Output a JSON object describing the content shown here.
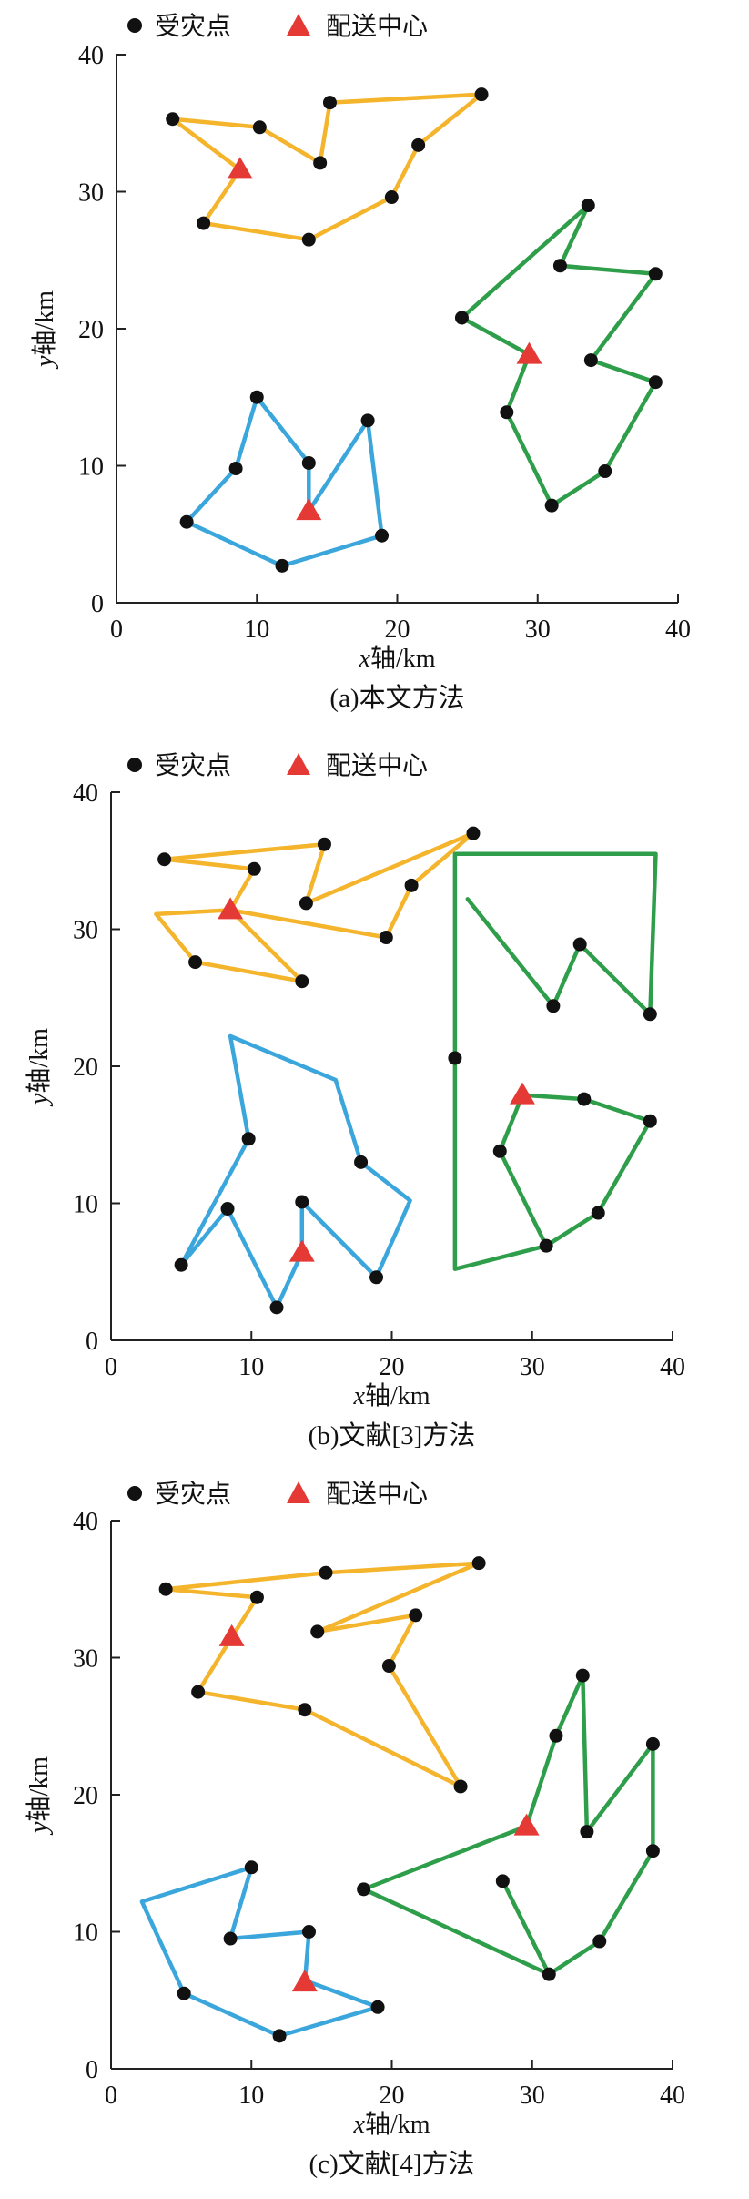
{
  "colors": {
    "route_orange": "#f4b42b",
    "route_green": "#2e9e4a",
    "route_blue": "#3aa6dc",
    "point": "#111111",
    "center": "#e53935"
  },
  "legend": {
    "affected_point_label": "受灾点",
    "center_label": "配送中心",
    "affected_point_icon": "black-dot",
    "center_icon": "red-triangle"
  },
  "axes": {
    "xlabel_italic": "x",
    "xlabel_rest": "轴/km",
    "ylabel_italic": "y",
    "ylabel_rest": "轴/km",
    "xticks": [
      "0",
      "10",
      "20",
      "30",
      "40"
    ],
    "yticks": [
      "0",
      "10",
      "20",
      "30",
      "40"
    ]
  },
  "chart_data": [
    {
      "type": "line",
      "caption": "(a)本文方法",
      "xlabel": "x轴/km",
      "ylabel": "y轴/km",
      "xlim": [
        0,
        40
      ],
      "ylim": [
        0,
        40
      ],
      "grid": false,
      "legend_placement": "top-left",
      "series": [
        {
          "color": "orange",
          "points": [
            [
              8.8,
              31.6
            ],
            [
              4,
              35.3
            ],
            [
              10.2,
              34.7
            ],
            [
              14.5,
              32.1
            ],
            [
              15.2,
              36.5
            ],
            [
              26,
              37.1
            ],
            [
              21.5,
              33.4
            ],
            [
              19.6,
              29.6
            ],
            [
              13.7,
              26.5
            ],
            [
              6.2,
              27.7
            ],
            [
              8.8,
              31.6
            ]
          ]
        },
        {
          "color": "green",
          "points": [
            [
              29.4,
              18.1
            ],
            [
              27.8,
              13.9
            ],
            [
              31,
              7.1
            ],
            [
              34.8,
              9.6
            ],
            [
              38.4,
              16.1
            ],
            [
              33.8,
              17.7
            ],
            [
              38.4,
              24
            ],
            [
              31.6,
              24.6
            ],
            [
              33.6,
              29
            ],
            [
              24.6,
              20.8
            ],
            [
              29.4,
              18.1
            ]
          ]
        },
        {
          "color": "blue",
          "points": [
            [
              13.7,
              6.7
            ],
            [
              13.7,
              10.2
            ],
            [
              10,
              15
            ],
            [
              8.5,
              9.8
            ],
            [
              5,
              5.9
            ],
            [
              11.8,
              2.7
            ],
            [
              18.9,
              4.9
            ],
            [
              17.9,
              13.3
            ],
            [
              13.7,
              6.7
            ]
          ]
        }
      ],
      "affected_points": [
        [
          4,
          35.3
        ],
        [
          10.2,
          34.7
        ],
        [
          14.5,
          32.1
        ],
        [
          15.2,
          36.5
        ],
        [
          26,
          37.1
        ],
        [
          21.5,
          33.4
        ],
        [
          19.6,
          29.6
        ],
        [
          13.7,
          26.5
        ],
        [
          6.2,
          27.7
        ],
        [
          24.6,
          20.8
        ],
        [
          33.6,
          29
        ],
        [
          31.6,
          24.6
        ],
        [
          38.4,
          24
        ],
        [
          33.8,
          17.7
        ],
        [
          38.4,
          16.1
        ],
        [
          34.8,
          9.6
        ],
        [
          31,
          7.1
        ],
        [
          27.8,
          13.9
        ],
        [
          10,
          15
        ],
        [
          8.5,
          9.8
        ],
        [
          5,
          5.9
        ],
        [
          11.8,
          2.7
        ],
        [
          18.9,
          4.9
        ],
        [
          17.9,
          13.3
        ],
        [
          13.7,
          10.2
        ]
      ],
      "centers": [
        [
          8.8,
          31.6
        ],
        [
          29.4,
          18.1
        ],
        [
          13.7,
          6.7
        ]
      ]
    },
    {
      "type": "line",
      "caption": "(b)文献[3]方法",
      "xlabel": "x轴/km",
      "ylabel": "y轴/km",
      "xlim": [
        0,
        40
      ],
      "ylim": [
        0,
        40
      ],
      "grid": false,
      "legend_placement": "top-left",
      "series": [
        {
          "color": "orange",
          "points": [
            [
              8.5,
              31.4
            ],
            [
              3.2,
              31.1
            ],
            [
              6,
              27.6
            ],
            [
              13.6,
              26.2
            ],
            [
              8.5,
              31.4
            ],
            [
              19.6,
              29.4
            ],
            [
              21.4,
              33.2
            ],
            [
              25.8,
              37
            ],
            [
              13.9,
              31.9
            ],
            [
              15.2,
              36.2
            ],
            [
              3.8,
              35.1
            ],
            [
              10.2,
              34.4
            ],
            [
              8.5,
              31.4
            ]
          ]
        },
        {
          "color": "green",
          "points": [
            [
              29.3,
              17.9
            ],
            [
              33.7,
              17.6
            ],
            [
              38.4,
              16
            ],
            [
              34.7,
              9.3
            ],
            [
              31,
              6.9
            ],
            [
              27.7,
              13.8
            ],
            [
              29.3,
              17.9
            ]
          ]
        },
        {
          "color": "green",
          "points": [
            [
              25.4,
              32.2
            ],
            [
              31.5,
              24.4
            ],
            [
              33.4,
              28.9
            ],
            [
              38.4,
              23.8
            ],
            [
              38.8,
              35.5
            ],
            [
              24.5,
              35.5
            ],
            [
              24.5,
              5.2
            ],
            [
              31,
              6.9
            ]
          ]
        },
        {
          "color": "blue",
          "points": [
            [
              13.6,
              6.4
            ],
            [
              13.6,
              10.1
            ],
            [
              18.9,
              4.6
            ],
            [
              21.3,
              10.2
            ],
            [
              17.8,
              13
            ],
            [
              16,
              19
            ],
            [
              8.5,
              22.2
            ],
            [
              9.8,
              14.7
            ],
            [
              5,
              5.5
            ],
            [
              8.3,
              9.6
            ],
            [
              11.8,
              2.4
            ],
            [
              13.6,
              6.4
            ]
          ]
        }
      ],
      "affected_points": [
        [
          3.8,
          35.1
        ],
        [
          10.2,
          34.4
        ],
        [
          15.2,
          36.2
        ],
        [
          13.9,
          31.9
        ],
        [
          25.8,
          37
        ],
        [
          21.4,
          33.2
        ],
        [
          19.6,
          29.4
        ],
        [
          13.6,
          26.2
        ],
        [
          6,
          27.6
        ],
        [
          24.5,
          20.6
        ],
        [
          33.4,
          28.9
        ],
        [
          31.5,
          24.4
        ],
        [
          38.4,
          23.8
        ],
        [
          33.7,
          17.6
        ],
        [
          38.4,
          16
        ],
        [
          34.7,
          9.3
        ],
        [
          31,
          6.9
        ],
        [
          27.7,
          13.8
        ],
        [
          9.8,
          14.7
        ],
        [
          8.3,
          9.6
        ],
        [
          5,
          5.5
        ],
        [
          11.8,
          2.4
        ],
        [
          18.9,
          4.6
        ],
        [
          17.8,
          13
        ],
        [
          13.6,
          10.1
        ]
      ],
      "centers": [
        [
          8.5,
          31.4
        ],
        [
          29.3,
          17.9
        ],
        [
          13.6,
          6.4
        ]
      ]
    },
    {
      "type": "line",
      "caption": "(c)文献[4]方法",
      "xlabel": "x轴/km",
      "ylabel": "y轴/km",
      "xlim": [
        0,
        40
      ],
      "ylim": [
        0,
        40
      ],
      "grid": false,
      "legend_placement": "top-left",
      "series": [
        {
          "color": "orange",
          "points": [
            [
              8.6,
              31.5
            ],
            [
              10.4,
              34.4
            ],
            [
              3.9,
              35
            ],
            [
              15.3,
              36.2
            ],
            [
              26.2,
              36.9
            ],
            [
              14.7,
              31.9
            ],
            [
              21.7,
              33.1
            ],
            [
              19.8,
              29.4
            ],
            [
              24.9,
              20.6
            ],
            [
              13.8,
              26.2
            ],
            [
              6.2,
              27.5
            ],
            [
              8.6,
              31.5
            ]
          ]
        },
        {
          "color": "green",
          "points": [
            [
              29.6,
              17.7
            ],
            [
              31.7,
              24.3
            ],
            [
              33.6,
              28.7
            ],
            [
              33.9,
              17.3
            ],
            [
              38.6,
              23.7
            ],
            [
              38.6,
              15.9
            ],
            [
              34.8,
              9.3
            ],
            [
              31.2,
              6.9
            ],
            [
              27.9,
              13.7
            ],
            [
              31.2,
              6.9
            ],
            [
              18,
              13.1
            ],
            [
              29.6,
              17.7
            ]
          ]
        },
        {
          "color": "blue",
          "points": [
            [
              13.8,
              6.3
            ],
            [
              14.1,
              10
            ],
            [
              8.5,
              9.5
            ],
            [
              10,
              14.7
            ],
            [
              2.2,
              12.2
            ],
            [
              5.2,
              5.5
            ],
            [
              12,
              2.4
            ],
            [
              19,
              4.5
            ],
            [
              14.2,
              6.3
            ],
            [
              13.8,
              6.3
            ]
          ]
        }
      ],
      "affected_points": [
        [
          3.9,
          35
        ],
        [
          10.4,
          34.4
        ],
        [
          15.3,
          36.2
        ],
        [
          14.7,
          31.9
        ],
        [
          26.2,
          36.9
        ],
        [
          21.7,
          33.1
        ],
        [
          19.8,
          29.4
        ],
        [
          13.8,
          26.2
        ],
        [
          6.2,
          27.5
        ],
        [
          24.9,
          20.6
        ],
        [
          33.6,
          28.7
        ],
        [
          31.7,
          24.3
        ],
        [
          38.6,
          23.7
        ],
        [
          33.9,
          17.3
        ],
        [
          38.6,
          15.9
        ],
        [
          34.8,
          9.3
        ],
        [
          31.2,
          6.9
        ],
        [
          27.9,
          13.7
        ],
        [
          18,
          13.1
        ],
        [
          10,
          14.7
        ],
        [
          8.5,
          9.5
        ],
        [
          5.2,
          5.5
        ],
        [
          12,
          2.4
        ],
        [
          19,
          4.5
        ],
        [
          14.1,
          10
        ]
      ],
      "centers": [
        [
          8.6,
          31.5
        ],
        [
          29.6,
          17.7
        ],
        [
          13.8,
          6.3
        ]
      ]
    }
  ]
}
